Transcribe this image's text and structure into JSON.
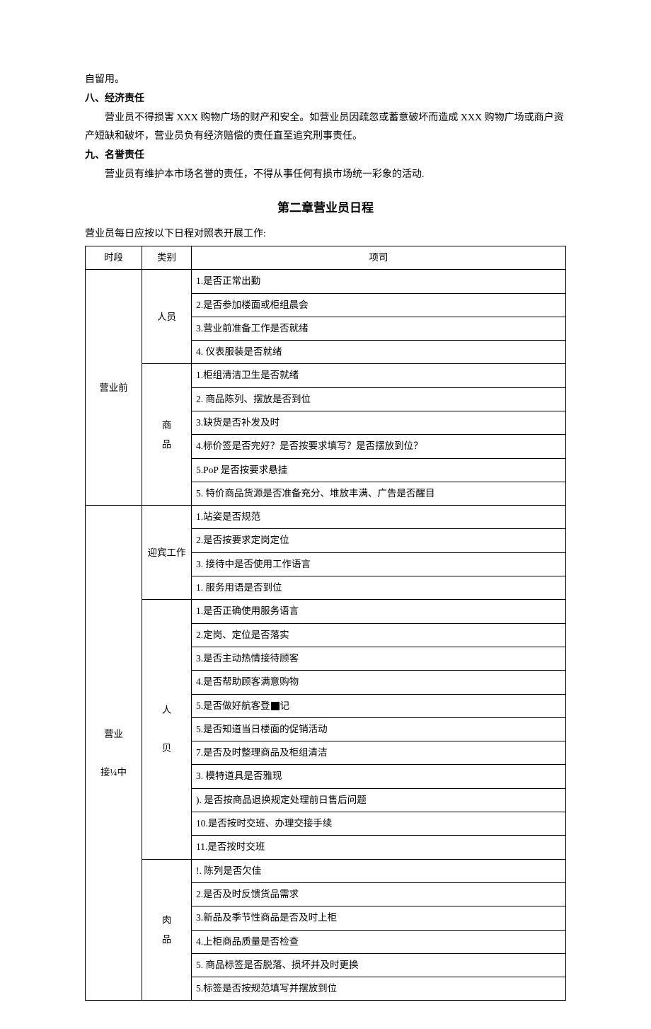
{
  "intro_line": "自留用。",
  "sections": [
    {
      "heading": "八、经济责任",
      "body": "营业员不得损害 XXX 购物广场的财产和安全。如营业员因疏忽或蓄意破坏而造成 XXX 购物广场或商户资产短缺和破坏，营业员负有经济赔偿的责任直至追究刑事责任。"
    },
    {
      "heading": "九、名誉责任",
      "body": "营业员有维护本市场名誉的责任，不得从事任何有损市场统一彩象的活动."
    }
  ],
  "chapter_title": "第二章营业员日程",
  "table_intro": "营业员每日应按以下日程对照表开展工作:",
  "table": {
    "headers": [
      "时段",
      "类别",
      "项司"
    ],
    "groups": [
      {
        "period": "营业前",
        "categories": [
          {
            "label": "人员",
            "items": [
              "1.是否正常出勤",
              "2.是否参加楼面或柜组晨会",
              "3.营业前准备工作是否就绪",
              "4. 仪表服装是否就绪"
            ]
          },
          {
            "label": "商\n品",
            "items": [
              "1.柜组清洁卫生是否就绪",
              "2. 商品陈列、摆放是否到位",
              "3.缺货是否补发及时",
              "4.标价签是否完好？是否按要求填写？是否摆放到位？",
              "5.PoP 是否按要求悬挂",
              "5. 特价商品货源是否准备充分、堆放丰满、广告是否醒目"
            ]
          }
        ]
      },
      {
        "period": "营业\n\n接¼中",
        "categories": [
          {
            "label": "迎宾工作",
            "items": [
              "1.站姿是否规范",
              "2.是否按要求定岗定位",
              "3. 接待中是否使用工作语言",
              "1. 服务用语是否到位"
            ]
          },
          {
            "label": "人\n\n贝",
            "items": [
              "1.是否正确使用服务语言",
              "2.定岗、定位是否落实",
              "3.是否主动热情接待顾客",
              "4.是否帮助顾客满意购物",
              "5.是否做好航客登__BLACKBOX__记",
              "5.是否知道当日楼面的促销活动",
              "7.是否及时整理商品及柜组清洁",
              "3. 模特道具是否雅现",
              "). 是否按商品退换规定处理前日售后问题",
              "10.是否按时交班、办理交接手续",
              "11.是否按时交班"
            ]
          },
          {
            "label": "肉\n品",
            "items": [
              "!. 陈列是否欠佳",
              "2.是否及时反馈货品需求",
              "3.新品及季节性商品是否及时上柜",
              "4.上柜商品质量是否检查",
              "5. 商品标签是否脱落、损坏并及时更换",
              "5.标签是否按规范填写并摆放到位"
            ]
          }
        ]
      }
    ]
  }
}
